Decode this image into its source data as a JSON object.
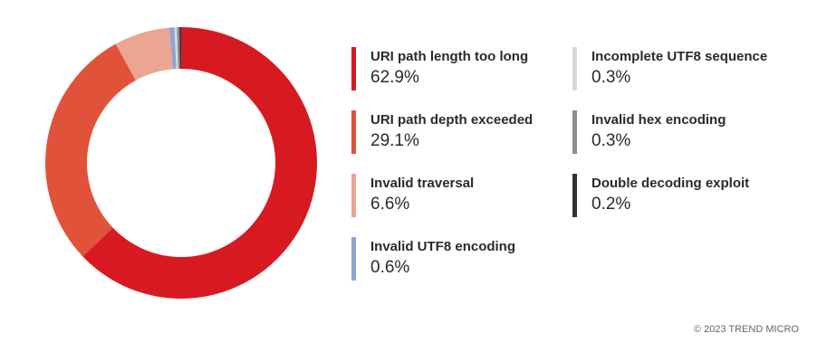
{
  "chart_data": {
    "type": "pie",
    "style": "donut",
    "categories": [
      "URI path length too long",
      "URI path depth exceeded",
      "Invalid traversal",
      "Invalid UTF8 encoding",
      "Incomplete UTF8 sequence",
      "Invalid hex encoding",
      "Double decoding exploit"
    ],
    "values": [
      62.9,
      29.1,
      6.6,
      0.6,
      0.3,
      0.3,
      0.2
    ],
    "value_labels": [
      "62.9%",
      "29.1%",
      "6.6%",
      "0.6%",
      "0.3%",
      "0.3%",
      "0.2%"
    ],
    "colors": [
      "#d71a21",
      "#e0533a",
      "#eba592",
      "#8fa5ce",
      "#d8d8d8",
      "#8c8c8c",
      "#333333"
    ],
    "legend_placement": "right",
    "title": "",
    "start_direction": "clockwise-from-top"
  },
  "footer": {
    "copyright": "© 2023 TREND MICRO"
  }
}
